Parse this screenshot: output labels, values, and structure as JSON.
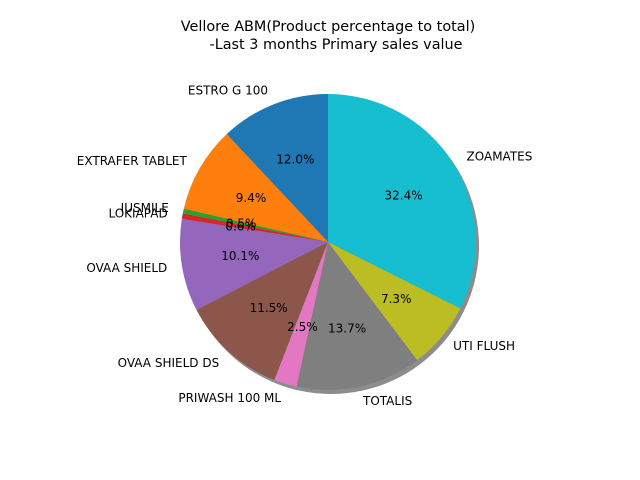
{
  "chart_data": {
    "type": "pie",
    "title_line1": "Vellore ABM(Product percentage to total)",
    "title_line2": "-Last 3 months Primary sales value",
    "shadow": true,
    "start_angle_deg": 90,
    "slices": [
      {
        "label": "ESTRO G 100",
        "value": 12.0,
        "pct_label": "12.0%",
        "color": "#1f77b4"
      },
      {
        "label": "EXTRAFER TABLET",
        "value": 9.4,
        "pct_label": "9.4%",
        "color": "#ff7f0e"
      },
      {
        "label": "IUSMILE",
        "value": 0.5,
        "pct_label": "0.5%",
        "color": "#2ca02c"
      },
      {
        "label": "LOKIAPAD",
        "value": 0.6,
        "pct_label": "0.6%",
        "color": "#d62728"
      },
      {
        "label": "OVAA SHIELD",
        "value": 10.1,
        "pct_label": "10.1%",
        "color": "#9467bd"
      },
      {
        "label": "OVAA SHIELD DS",
        "value": 11.5,
        "pct_label": "11.5%",
        "color": "#8c564b"
      },
      {
        "label": "PRIWASH 100 ML",
        "value": 2.5,
        "pct_label": "2.5%",
        "color": "#e377c2"
      },
      {
        "label": "TOTALIS",
        "value": 13.7,
        "pct_label": "13.7%",
        "color": "#7f7f7f"
      },
      {
        "label": "UTI FLUSH",
        "value": 7.3,
        "pct_label": "7.3%",
        "color": "#bcbd22"
      },
      {
        "label": "ZOAMATES",
        "value": 32.4,
        "pct_label": "32.4%",
        "color": "#17becf"
      }
    ]
  }
}
